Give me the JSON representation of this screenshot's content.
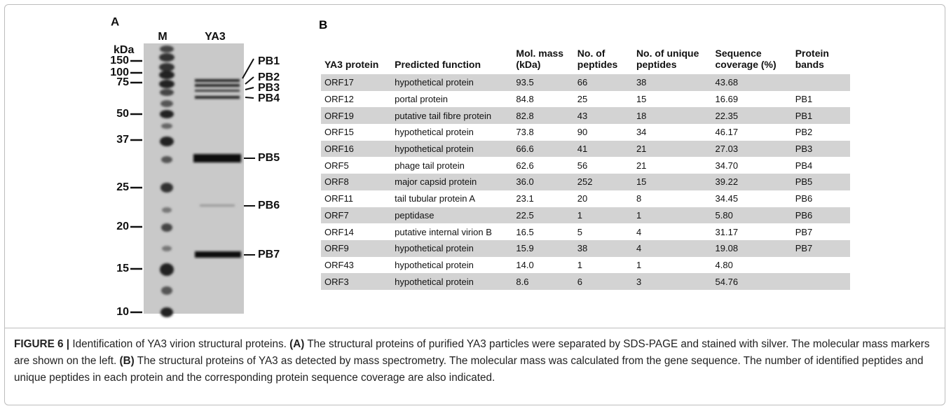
{
  "panel_a": {
    "label": "A",
    "unit": "kDa",
    "lanes": [
      "M",
      "YA3"
    ],
    "markers": [
      "150",
      "100",
      "75",
      "50",
      "37",
      "25",
      "20",
      "15",
      "10"
    ],
    "bands": [
      "PB1",
      "PB2",
      "PB3",
      "PB4",
      "PB5",
      "PB6",
      "PB7"
    ]
  },
  "panel_b": {
    "label": "B",
    "table": {
      "header": [
        "YA3 protein",
        "Predicted function",
        "Mol. mass (kDa)",
        "No. of peptides",
        "No. of unique peptides",
        "Sequence coverage (%)",
        "Protein bands"
      ],
      "rows": [
        [
          "ORF17",
          "hypothetical protein",
          "93.5",
          "66",
          "38",
          "43.68"
        ],
        [
          "ORF12",
          "portal protein",
          "84.8",
          "25",
          "15",
          "16.69",
          "PB1"
        ],
        [
          "ORF19",
          "putative tail fibre protein",
          "82.8",
          "43",
          "18",
          "22.35",
          "PB1"
        ],
        [
          "ORF15",
          "hypothetical protein",
          "73.8",
          "90",
          "34",
          "46.17",
          "PB2"
        ],
        [
          "ORF16",
          "hypothetical protein",
          "66.6",
          "41",
          "21",
          "27.03",
          "PB3"
        ],
        [
          "ORF5",
          "phage tail protein",
          "62.6",
          "56",
          "21",
          "34.70",
          "PB4"
        ],
        [
          "ORF8",
          "major capsid protein",
          "36.0",
          "252",
          "15",
          "39.22",
          "PB5"
        ],
        [
          "ORF11",
          "tail tubular protein A",
          "23.1",
          "20",
          "8",
          "34.45",
          "PB6"
        ],
        [
          "ORF7",
          "peptidase",
          "22.5",
          "1",
          "1",
          "5.80",
          "PB6"
        ],
        [
          "ORF14",
          "putative internal virion B",
          "16.5",
          "5",
          "4",
          "31.17",
          "PB7"
        ],
        [
          "ORF9",
          "hypothetical protein",
          "15.9",
          "38",
          "4",
          "19.08",
          "PB7"
        ],
        [
          "ORF43",
          "hypothetical protein",
          "14.0",
          "1",
          "1",
          "4.80"
        ],
        [
          "ORF3",
          "hypothetical protein",
          "8.6",
          "6",
          "3",
          "54.76"
        ]
      ]
    }
  },
  "caption": {
    "label": "FIGURE 6 |",
    "text_0": " Identification of YA3 virion structural proteins. ",
    "part_a": "(A)",
    "text_1": " The structural proteins of purified YA3 particles were separated by SDS-PAGE and stained with silver. The molecular mass markers are shown on the left. ",
    "part_b": "(B)",
    "text_2": " The structural proteins of YA3 as detected by mass spectrometry. The molecular mass was calculated from the gene sequence. The number of identified peptides and unique peptides in each protein and the corresponding protein sequence coverage are also indicated."
  }
}
